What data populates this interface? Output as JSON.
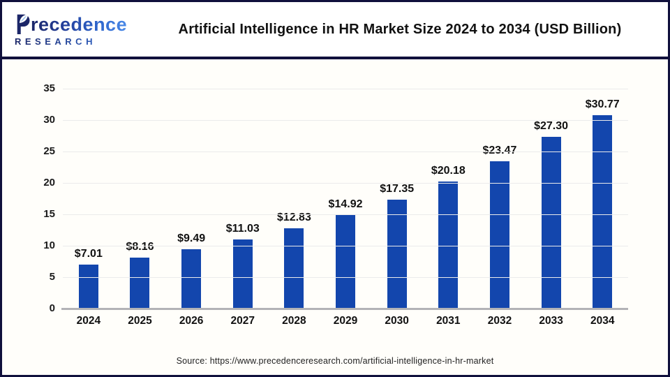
{
  "header": {
    "logo": {
      "line1_initial": "P",
      "line1_rest": "recedence",
      "line2": "RESEARCH"
    },
    "title": "Artificial Intelligence in HR Market Size 2024 to 2034 (USD Billion)"
  },
  "chart_data": {
    "type": "bar",
    "title": "Artificial Intelligence in HR Market Size 2024 to 2034 (USD Billion)",
    "categories": [
      "2024",
      "2025",
      "2026",
      "2027",
      "2028",
      "2029",
      "2030",
      "2031",
      "2032",
      "2033",
      "2034"
    ],
    "values": [
      7.01,
      8.16,
      9.49,
      11.03,
      12.83,
      14.92,
      17.35,
      20.18,
      23.47,
      27.3,
      30.77
    ],
    "value_labels": [
      "$7.01",
      "$8.16",
      "$9.49",
      "$11.03",
      "$12.83",
      "$14.92",
      "$17.35",
      "$20.18",
      "$23.47",
      "$27.30",
      "$30.77"
    ],
    "xlabel": "",
    "ylabel": "",
    "ylim": [
      0,
      35
    ],
    "y_ticks": [
      0,
      5,
      10,
      15,
      20,
      25,
      30,
      35
    ],
    "grid": true,
    "legend": "none",
    "bar_color": "#1346ad"
  },
  "colors": {
    "bar": "#1346ad",
    "frame_border": "#10103c",
    "gridline": "#ebebeb",
    "axis_baseline": "#b3b3b6",
    "logo_navy": "#1b2668",
    "logo_blue": "#4a8ae8"
  },
  "footer": {
    "source": "Source: https://www.precedenceresearch.com/artificial-intelligence-in-hr-market"
  }
}
